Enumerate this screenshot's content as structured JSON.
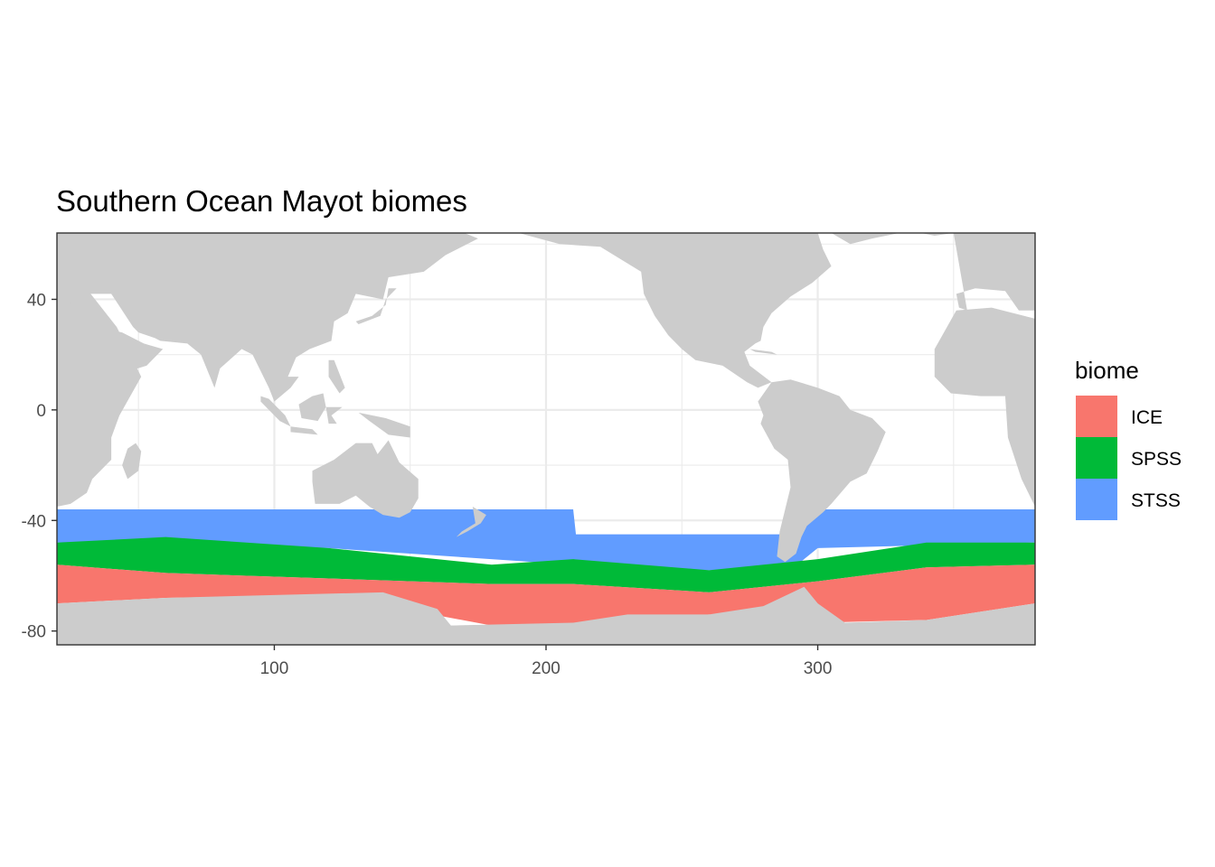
{
  "chart_data": {
    "type": "heatmap",
    "title": "Southern Ocean Mayot biomes",
    "xlabel": "",
    "ylabel": "",
    "xlim": [
      20,
      380
    ],
    "ylim": [
      -85,
      64
    ],
    "x_ticks": [
      100,
      200,
      300
    ],
    "y_ticks": [
      40,
      0,
      -40,
      -80
    ],
    "grid": true,
    "legend": {
      "title": "biome",
      "position": "right",
      "entries": [
        "ICE",
        "SPSS",
        "STSS"
      ]
    },
    "colors": {
      "ICE": "#F8766D",
      "SPSS": "#00BA38",
      "STSS": "#619CFF",
      "land": "#CCCCCC",
      "grid": "#EBEBEB",
      "panel_border": "#333333"
    },
    "biome_bands": [
      {
        "biome": "STSS",
        "x": [
          20,
          120,
          210,
          211,
          290,
          300,
          380
        ],
        "north_lat": [
          -36,
          -36,
          -36,
          -45,
          -45,
          -36,
          -36
        ],
        "south_lat": [
          -48,
          -50,
          -56,
          -58,
          -58,
          -50,
          -48
        ]
      },
      {
        "biome": "SPSS",
        "x": [
          20,
          60,
          120,
          180,
          210,
          260,
          300,
          340,
          380
        ],
        "north_lat": [
          -48,
          -46,
          -50,
          -56,
          -54,
          -58,
          -54,
          -48,
          -48
        ],
        "south_lat": [
          -56,
          -59,
          -61,
          -63,
          -63,
          -66,
          -62,
          -57,
          -56
        ]
      },
      {
        "biome": "ICE",
        "x": [
          20,
          60,
          120,
          180,
          210,
          260,
          300,
          340,
          380
        ],
        "north_lat": [
          -56,
          -59,
          -61,
          -63,
          -63,
          -66,
          -62,
          -57,
          -56
        ],
        "south_lat": [
          -70,
          -68,
          -67,
          -78,
          -78,
          -74,
          -77,
          -76,
          -70
        ]
      }
    ],
    "land": [
      {
        "name": "Antarctica",
        "poly": [
          [
            20,
            -70
          ],
          [
            60,
            -68
          ],
          [
            100,
            -67
          ],
          [
            140,
            -66
          ],
          [
            160,
            -72
          ],
          [
            165,
            -78
          ],
          [
            210,
            -77
          ],
          [
            230,
            -74
          ],
          [
            260,
            -74
          ],
          [
            280,
            -71
          ],
          [
            295,
            -64
          ],
          [
            300,
            -70
          ],
          [
            310,
            -77
          ],
          [
            340,
            -76
          ],
          [
            380,
            -70
          ],
          [
            380,
            -85
          ],
          [
            20,
            -85
          ]
        ]
      },
      {
        "name": "Africa",
        "poly": [
          [
            20,
            64
          ],
          [
            40,
            62
          ],
          [
            30,
            45
          ],
          [
            42,
            30
          ],
          [
            51,
            12
          ],
          [
            43,
            -2
          ],
          [
            40,
            -10
          ],
          [
            40,
            -18
          ],
          [
            33,
            -25
          ],
          [
            31,
            -30
          ],
          [
            25,
            -34
          ],
          [
            20,
            -35
          ]
        ]
      },
      {
        "name": "Madagascar",
        "poly": [
          [
            49,
            -12
          ],
          [
            51,
            -15
          ],
          [
            50,
            -22
          ],
          [
            46,
            -25
          ],
          [
            44,
            -20
          ],
          [
            46,
            -14
          ]
        ]
      },
      {
        "name": "Eurasia",
        "poly": [
          [
            20,
            64
          ],
          [
            170,
            64
          ],
          [
            175,
            62
          ],
          [
            163,
            56
          ],
          [
            155,
            50
          ],
          [
            142,
            48
          ],
          [
            140,
            40
          ],
          [
            130,
            42
          ],
          [
            127,
            35
          ],
          [
            122,
            32
          ],
          [
            121,
            25
          ],
          [
            113,
            22
          ],
          [
            108,
            19
          ],
          [
            105,
            12
          ],
          [
            109,
            12
          ],
          [
            106,
            8
          ],
          [
            100,
            3
          ],
          [
            98,
            8
          ],
          [
            92,
            20
          ],
          [
            88,
            22
          ],
          [
            80,
            15
          ],
          [
            78,
            8
          ],
          [
            73,
            20
          ],
          [
            68,
            24
          ],
          [
            58,
            25
          ],
          [
            56,
            26
          ],
          [
            50,
            28
          ],
          [
            48,
            30
          ],
          [
            40,
            42
          ],
          [
            28,
            42
          ],
          [
            24,
            38
          ],
          [
            20,
            42
          ]
        ]
      },
      {
        "name": "Arabia",
        "poly": [
          [
            35,
            30
          ],
          [
            44,
            28
          ],
          [
            52,
            24
          ],
          [
            59,
            22
          ],
          [
            53,
            16
          ],
          [
            43,
            13
          ],
          [
            36,
            22
          ]
        ]
      },
      {
        "name": "Japan",
        "poly": [
          [
            130,
            32
          ],
          [
            136,
            34
          ],
          [
            141,
            38
          ],
          [
            142,
            44
          ],
          [
            145,
            44
          ],
          [
            141,
            40
          ],
          [
            139,
            34
          ],
          [
            131,
            31
          ]
        ]
      },
      {
        "name": "Sumatra",
        "poly": [
          [
            95,
            5
          ],
          [
            98,
            4
          ],
          [
            104,
            -2
          ],
          [
            106,
            -6
          ],
          [
            102,
            -4
          ],
          [
            95,
            3
          ]
        ]
      },
      {
        "name": "Borneo",
        "poly": [
          [
            109,
            2
          ],
          [
            114,
            5
          ],
          [
            118,
            6
          ],
          [
            119,
            1
          ],
          [
            116,
            -4
          ],
          [
            110,
            -3
          ]
        ]
      },
      {
        "name": "Java",
        "poly": [
          [
            106,
            -6
          ],
          [
            114,
            -7
          ],
          [
            116,
            -9
          ],
          [
            106,
            -8
          ]
        ]
      },
      {
        "name": "Sulawesi",
        "poly": [
          [
            119,
            1
          ],
          [
            125,
            1
          ],
          [
            121,
            -2
          ],
          [
            123,
            -5
          ],
          [
            120,
            -5
          ]
        ]
      },
      {
        "name": "Philippines",
        "poly": [
          [
            120,
            18
          ],
          [
            122,
            18
          ],
          [
            126,
            8
          ],
          [
            124,
            6
          ],
          [
            120,
            12
          ]
        ]
      },
      {
        "name": "New Guinea",
        "poly": [
          [
            131,
            -1
          ],
          [
            141,
            -3
          ],
          [
            150,
            -6
          ],
          [
            150,
            -10
          ],
          [
            142,
            -9
          ],
          [
            135,
            -4
          ]
        ]
      },
      {
        "name": "Australia",
        "poly": [
          [
            114,
            -22
          ],
          [
            122,
            -18
          ],
          [
            130,
            -12
          ],
          [
            136,
            -12
          ],
          [
            138,
            -16
          ],
          [
            142,
            -11
          ],
          [
            146,
            -19
          ],
          [
            153,
            -25
          ],
          [
            153,
            -32
          ],
          [
            150,
            -37
          ],
          [
            146,
            -39
          ],
          [
            140,
            -38
          ],
          [
            135,
            -35
          ],
          [
            130,
            -31
          ],
          [
            124,
            -34
          ],
          [
            115,
            -34
          ],
          [
            114,
            -26
          ]
        ]
      },
      {
        "name": "New Zealand",
        "poly": [
          [
            173,
            -35
          ],
          [
            178,
            -38
          ],
          [
            176,
            -41
          ],
          [
            171,
            -44
          ],
          [
            167,
            -46
          ],
          [
            169,
            -44
          ],
          [
            174,
            -41
          ]
        ]
      },
      {
        "name": "North America",
        "poly": [
          [
            190,
            64
          ],
          [
            205,
            60
          ],
          [
            220,
            59
          ],
          [
            235,
            50
          ],
          [
            236,
            42
          ],
          [
            240,
            34
          ],
          [
            245,
            27
          ],
          [
            250,
            22
          ],
          [
            255,
            18
          ],
          [
            265,
            16
          ],
          [
            274,
            10
          ],
          [
            278,
            8
          ],
          [
            283,
            10
          ],
          [
            275,
            16
          ],
          [
            273,
            21
          ],
          [
            277,
            24
          ],
          [
            279,
            25
          ],
          [
            280,
            30
          ],
          [
            283,
            35
          ],
          [
            290,
            41
          ],
          [
            298,
            46
          ],
          [
            305,
            52
          ],
          [
            302,
            58
          ],
          [
            300,
            64
          ]
        ]
      },
      {
        "name": "Cuba",
        "poly": [
          [
            275,
            22
          ],
          [
            283,
            21
          ],
          [
            285,
            20
          ],
          [
            277,
            21
          ]
        ]
      },
      {
        "name": "Greenland",
        "poly": [
          [
            305,
            64
          ],
          [
            312,
            60
          ],
          [
            320,
            62
          ],
          [
            330,
            64
          ]
        ]
      },
      {
        "name": "South America",
        "poly": [
          [
            283,
            10
          ],
          [
            290,
            11
          ],
          [
            300,
            8
          ],
          [
            308,
            5
          ],
          [
            312,
            0
          ],
          [
            320,
            -3
          ],
          [
            325,
            -8
          ],
          [
            322,
            -15
          ],
          [
            318,
            -23
          ],
          [
            312,
            -26
          ],
          [
            305,
            -34
          ],
          [
            302,
            -37
          ],
          [
            296,
            -42
          ],
          [
            294,
            -46
          ],
          [
            292,
            -52
          ],
          [
            288,
            -55
          ],
          [
            285,
            -53
          ],
          [
            286,
            -44
          ],
          [
            288,
            -36
          ],
          [
            290,
            -28
          ],
          [
            289,
            -18
          ],
          [
            284,
            -14
          ],
          [
            279,
            -5
          ],
          [
            280,
            -2
          ],
          [
            278,
            3
          ]
        ]
      },
      {
        "name": "Iceland",
        "poly": [
          [
            338,
            64
          ],
          [
            345,
            66
          ],
          [
            350,
            64
          ],
          [
            343,
            63
          ]
        ]
      },
      {
        "name": "Europe",
        "poly": [
          [
            350,
            64
          ],
          [
            380,
            64
          ],
          [
            380,
            36
          ],
          [
            374,
            36
          ],
          [
            369,
            43
          ],
          [
            358,
            44
          ],
          [
            351,
            42
          ],
          [
            352,
            37
          ],
          [
            355,
            36
          ]
        ]
      },
      {
        "name": "Britain",
        "poly": [
          [
            355,
            50
          ],
          [
            358,
            52
          ],
          [
            359,
            56
          ],
          [
            355,
            58
          ],
          [
            354,
            54
          ]
        ]
      },
      {
        "name": "West Africa",
        "poly": [
          [
            351,
            36
          ],
          [
            364,
            37
          ],
          [
            380,
            33
          ],
          [
            380,
            -35
          ],
          [
            375,
            -25
          ],
          [
            370,
            -10
          ],
          [
            369,
            5
          ],
          [
            360,
            5
          ],
          [
            349,
            6
          ],
          [
            343,
            12
          ],
          [
            343,
            22
          ]
        ]
      }
    ]
  }
}
